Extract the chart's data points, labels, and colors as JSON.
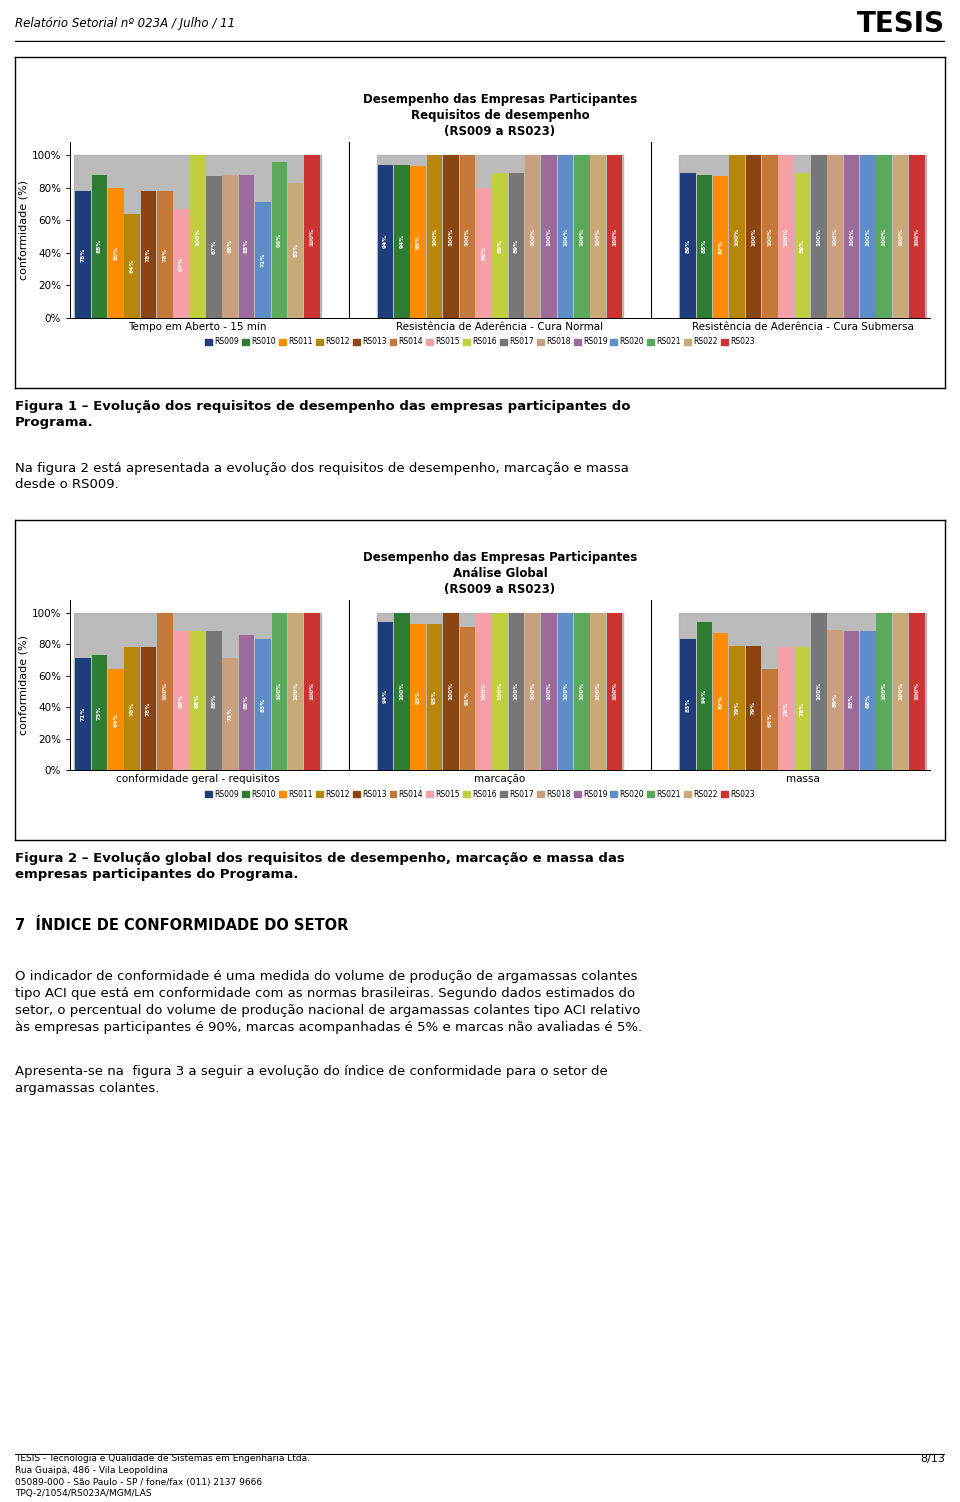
{
  "header_text": "Relatório Setorial nº 023A / Julho / 11",
  "tesis_logo": "TESIS",
  "chart1": {
    "title_line1": "Desempenho das Empresas Participantes",
    "title_line2": "Requisitos de desempenho",
    "title_line3": "(RS009 a RS023)",
    "ylabel": "conformidade (%)",
    "groups": [
      "Tempo em Aberto - 15 min",
      "Resistência de Aderência - Cura Normal",
      "Resistência de Aderência - Cura Submersa"
    ],
    "series_labels": [
      "RS009",
      "RS010",
      "RS011",
      "RS012",
      "RS013",
      "RS014",
      "RS015",
      "RS016",
      "RS017",
      "RS018",
      "RS019",
      "RS020",
      "RS021",
      "RS022",
      "RS023"
    ],
    "colors": [
      "#1F3D7A",
      "#2E7D32",
      "#FF8C00",
      "#B8860B",
      "#8B4513",
      "#C4783A",
      "#F4A0A8",
      "#BFCF40",
      "#777777",
      "#C8A080",
      "#9B6B9B",
      "#5E8EC8",
      "#5BAA5B",
      "#C8AA78",
      "#CC3333"
    ],
    "data": {
      "Tempo em Aberto - 15 min": [
        78,
        88,
        80,
        64,
        78,
        78,
        67,
        100,
        87,
        88,
        88,
        71,
        96,
        83,
        100
      ],
      "Resistência de Aderência - Cura Normal": [
        94,
        94,
        93,
        100,
        100,
        100,
        80,
        89,
        89,
        100,
        100,
        100,
        100,
        100,
        100
      ],
      "Resistência de Aderência - Cura Submersa": [
        89,
        88,
        87,
        100,
        100,
        100,
        100,
        89,
        100,
        100,
        100,
        100,
        100,
        100,
        100
      ]
    }
  },
  "chart2": {
    "title_line1": "Desempenho das Empresas Participantes",
    "title_line2": "Análise Global",
    "title_line3": "(RS009 a RS023)",
    "ylabel": "conformidade (%)",
    "groups": [
      "conformidade geral - requisitos",
      "marcação",
      "massa"
    ],
    "series_labels": [
      "RS009",
      "RS010",
      "RS011",
      "RS012",
      "RS013",
      "RS014",
      "RS015",
      "RS016",
      "RS017",
      "RS018",
      "RS019",
      "RS020",
      "RS021",
      "RS022",
      "RS023"
    ],
    "colors": [
      "#1F3D7A",
      "#2E7D32",
      "#FF8C00",
      "#B8860B",
      "#8B4513",
      "#C4783A",
      "#F4A0A8",
      "#BFCF40",
      "#777777",
      "#C8A080",
      "#9B6B9B",
      "#5E8EC8",
      "#5BAA5B",
      "#C8AA78",
      "#CC3333"
    ],
    "data": {
      "conformidade geral - requisitos": [
        71,
        73,
        64,
        78,
        78,
        100,
        88,
        88,
        88,
        71,
        86,
        83,
        100,
        100,
        100
      ],
      "marcação": [
        94,
        100,
        93,
        93,
        100,
        91,
        100,
        100,
        100,
        100,
        100,
        100,
        100,
        100,
        100
      ],
      "massa": [
        83,
        94,
        87,
        79,
        79,
        64,
        78,
        78,
        100,
        89,
        88,
        88,
        100,
        100,
        100
      ]
    }
  },
  "footer": {
    "line1": "TESIS - Tecnologia e Qualidade de Sistemas em Engenharia Ltda.",
    "line2": "Rua Guaipá, 486 - Vila Leopoldina",
    "line3": "05089-000 - São Paulo - SP / fone/fax (011) 2137 9666",
    "line4": "TPQ-2/1054/RS023A/MGM/LAS",
    "page": "8/13"
  }
}
